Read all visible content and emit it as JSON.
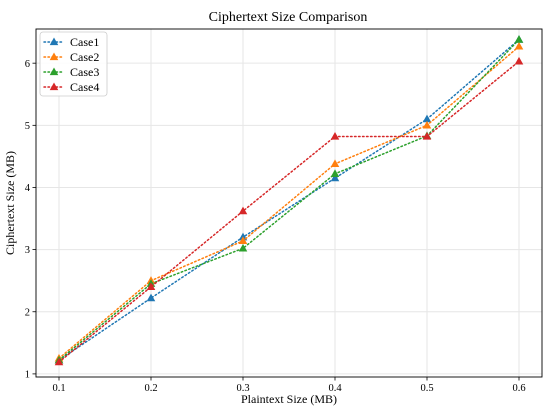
{
  "chart_data": {
    "type": "line",
    "title": "Ciphertext Size Comparison",
    "xlabel": "Plaintext Size (MB)",
    "ylabel": "Ciphertext Size (MB)",
    "x": [
      0.1,
      0.2,
      0.3,
      0.4,
      0.5,
      0.6
    ],
    "x_tick_labels": [
      "0.1",
      "0.2",
      "0.3",
      "0.4",
      "0.5",
      "0.6"
    ],
    "y_ticks": [
      1,
      2,
      3,
      4,
      5,
      6
    ],
    "y_tick_labels": [
      "1",
      "2",
      "3",
      "4",
      "5",
      "6"
    ],
    "xlim": [
      0.075,
      0.625
    ],
    "ylim": [
      0.95,
      6.55
    ],
    "grid": true,
    "legend_position": "top-left",
    "line_style": "dotted",
    "marker": "triangle-up",
    "series": [
      {
        "name": "Case1",
        "color": "#1f77b4",
        "values": [
          1.22,
          2.22,
          3.2,
          4.15,
          5.1,
          6.38
        ]
      },
      {
        "name": "Case2",
        "color": "#ff7f0e",
        "values": [
          1.25,
          2.5,
          3.14,
          4.38,
          5.0,
          6.27
        ]
      },
      {
        "name": "Case3",
        "color": "#2ca02c",
        "values": [
          1.22,
          2.45,
          3.02,
          4.22,
          4.83,
          6.38
        ]
      },
      {
        "name": "Case4",
        "color": "#d62728",
        "values": [
          1.19,
          2.4,
          3.62,
          4.82,
          4.82,
          6.03
        ]
      }
    ]
  }
}
